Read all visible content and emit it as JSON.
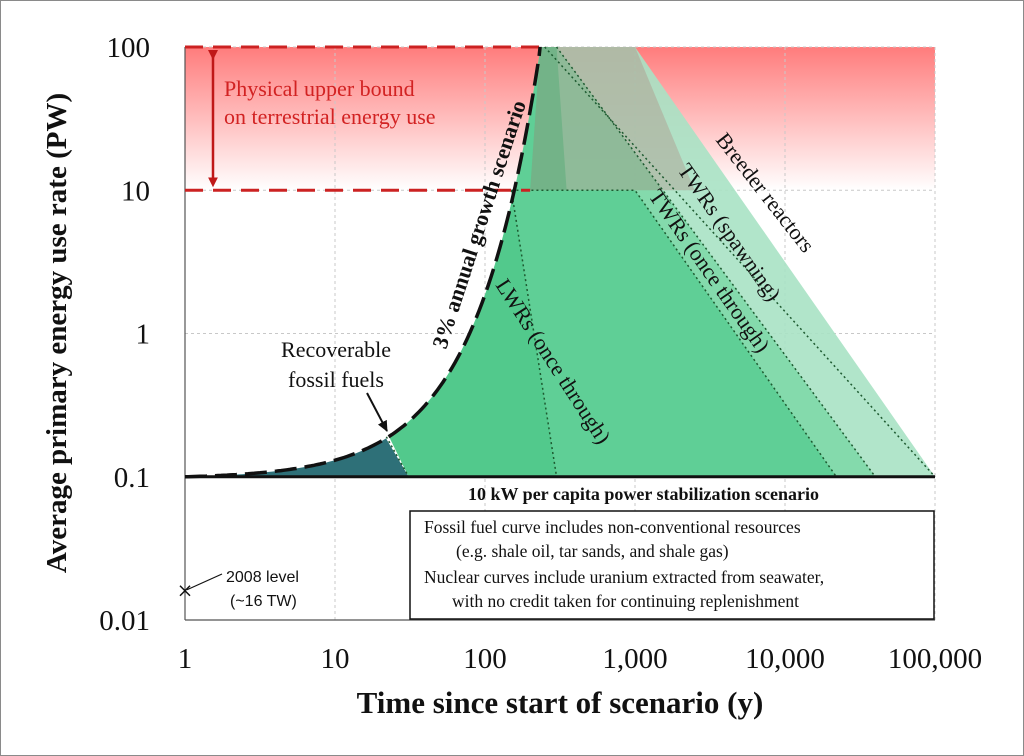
{
  "chart_data": {
    "type": "area",
    "x_scale": "log",
    "y_scale": "log",
    "xlabel": "Time since start of scenario (y)",
    "ylabel": "Average primary energy use rate (PW)",
    "xlim": [
      1,
      100000
    ],
    "ylim": [
      0.01,
      100
    ],
    "x_ticks": [
      {
        "value": 1,
        "label": "1"
      },
      {
        "value": 10,
        "label": "10"
      },
      {
        "value": 100,
        "label": "100"
      },
      {
        "value": 1000,
        "label": "1,000"
      },
      {
        "value": 10000,
        "label": "10,000"
      },
      {
        "value": 100000,
        "label": "100,000"
      }
    ],
    "y_ticks": [
      {
        "value": 0.01,
        "label": "0.01"
      },
      {
        "value": 0.1,
        "label": "0.1"
      },
      {
        "value": 1,
        "label": "1"
      },
      {
        "value": 10,
        "label": "10"
      },
      {
        "value": 100,
        "label": "100"
      }
    ],
    "grid": true,
    "colors": {
      "band_top": "#ff8080",
      "fossil": "#2e7078",
      "lwr": "#52c98c",
      "twr_once": "#5fcf96",
      "twr_spawn": "#7fd8a8",
      "breeder": "#a8e2c4",
      "dashed_red": "#d02020"
    },
    "series": [
      {
        "name": "3% annual growth scenario",
        "style": "dashed",
        "x": [
          1,
          10,
          20,
          50,
          100,
          150,
          200,
          233
        ],
        "y": [
          0.1,
          0.13,
          0.18,
          0.43,
          1.92,
          8.6,
          38.5,
          100
        ]
      },
      {
        "name": "Recoverable fossil fuels",
        "x": [
          1,
          10,
          22,
          31
        ],
        "y": [
          0.1,
          0.13,
          0.19,
          0.1
        ]
      },
      {
        "name": "LWRs (once through)",
        "x": [
          150,
          300
        ],
        "y": [
          10,
          0.1
        ]
      },
      {
        "name": "TWRs (once through)",
        "x": [
          150,
          1000,
          22000
        ],
        "y": [
          10,
          10,
          0.1
        ]
      },
      {
        "name": "TWRs (spawning)",
        "x": [
          250,
          1000,
          40000
        ],
        "y": [
          100,
          100,
          0.1
        ]
      },
      {
        "name": "Breeder reactors",
        "x": [
          250,
          1000,
          100000
        ],
        "y": [
          100,
          100,
          0.1
        ]
      }
    ],
    "reference_lines": [
      {
        "name": "10 kW per capita power stabilization scenario",
        "y": 0.1
      },
      {
        "name": "Physical upper bound lower edge",
        "y": 10,
        "style": "dashed"
      },
      {
        "name": "Physical upper bound upper edge",
        "y": 100,
        "style": "dashed"
      }
    ],
    "points": [
      {
        "name": "2008 level",
        "x": 1,
        "y": 0.016
      }
    ],
    "annotations": {
      "upper_bound": [
        "Physical upper bound",
        "on terrestrial energy use"
      ],
      "growth": "3% annual growth scenario",
      "fossil": [
        "Recoverable",
        "fossil fuels"
      ],
      "lwr": "LWRs (once through)",
      "twr_once": "TWRs (once through)",
      "twr_spawn": "TWRs (spawning)",
      "breeder": "Breeder reactors",
      "stabilization": "10 kW per capita power stabilization scenario",
      "level_2008": [
        "2008 level",
        "(~16 TW)"
      ],
      "notes": [
        "Fossil fuel curve includes non-conventional  resources",
        "(e.g. shale oil, tar sands, and shale gas)",
        "Nuclear curves include uranium extracted from seawater,",
        "with no credit taken for continuing replenishment"
      ]
    }
  }
}
